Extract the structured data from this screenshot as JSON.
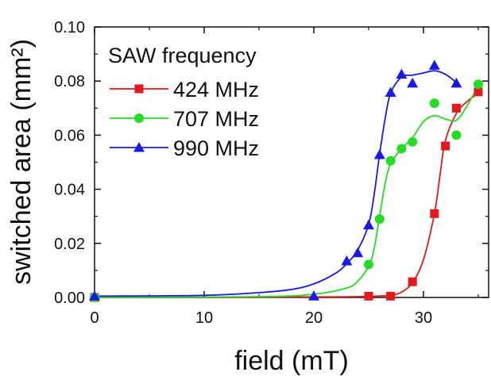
{
  "chart_data": {
    "type": "scatter",
    "xlabel": "field (mT)",
    "ylabel": "switched area (mm²)",
    "xlim": [
      0,
      36
    ],
    "ylim": [
      0,
      0.1
    ],
    "x_ticks": [
      "0",
      "10",
      "20",
      "30"
    ],
    "y_ticks": [
      "0.00",
      "0.02",
      "0.04",
      "0.06",
      "0.08",
      "0.10"
    ],
    "legend_title": "SAW frequency",
    "legend_position": "top-left",
    "series": [
      {
        "name": "424 MHz",
        "color": "#e31a1c",
        "marker": "square",
        "points": [
          [
            0,
            0.0
          ],
          [
            25,
            0.0005
          ],
          [
            27,
            0.0005
          ],
          [
            29,
            0.0058
          ],
          [
            31,
            0.031
          ],
          [
            32,
            0.056
          ],
          [
            33,
            0.07
          ],
          [
            35,
            0.076
          ]
        ],
        "fit": [
          [
            0,
            0.0
          ],
          [
            20,
            0.0002
          ],
          [
            25,
            0.0004
          ],
          [
            27,
            0.0008
          ],
          [
            28,
            0.002
          ],
          [
            29,
            0.0055
          ],
          [
            30,
            0.014
          ],
          [
            31,
            0.031
          ],
          [
            31.5,
            0.045
          ],
          [
            32,
            0.058
          ],
          [
            33,
            0.068
          ],
          [
            34,
            0.0725
          ],
          [
            35,
            0.0755
          ]
        ]
      },
      {
        "name": "707 MHz",
        "color": "#22dd22",
        "marker": "circle",
        "points": [
          [
            0,
            0.0
          ],
          [
            25,
            0.0122
          ],
          [
            26,
            0.029
          ],
          [
            27,
            0.0505
          ],
          [
            28,
            0.055
          ],
          [
            29,
            0.0575
          ],
          [
            31,
            0.0718
          ],
          [
            33,
            0.06
          ],
          [
            35,
            0.0788
          ]
        ],
        "fit": [
          [
            0,
            0.0
          ],
          [
            15,
            0.0003
          ],
          [
            20,
            0.0012
          ],
          [
            23,
            0.0035
          ],
          [
            24,
            0.006
          ],
          [
            25,
            0.0115
          ],
          [
            25.5,
            0.018
          ],
          [
            26,
            0.03
          ],
          [
            26.5,
            0.042
          ],
          [
            27,
            0.0495
          ],
          [
            28,
            0.055
          ],
          [
            29,
            0.059
          ],
          [
            30,
            0.065
          ],
          [
            31,
            0.0672
          ],
          [
            32,
            0.066
          ],
          [
            33,
            0.0655
          ],
          [
            34,
            0.071
          ],
          [
            35,
            0.0785
          ]
        ]
      },
      {
        "name": "990 MHz",
        "color": "#1a1ae8",
        "marker": "triangle",
        "points": [
          [
            0,
            0.0005
          ],
          [
            20,
            0.0005
          ],
          [
            23,
            0.0135
          ],
          [
            24,
            0.0165
          ],
          [
            25,
            0.0268
          ],
          [
            26,
            0.0528
          ],
          [
            27,
            0.0758
          ],
          [
            28,
            0.0825
          ],
          [
            29,
            0.0792
          ],
          [
            31,
            0.0858
          ],
          [
            33,
            0.0792
          ]
        ],
        "fit": [
          [
            0,
            0.0005
          ],
          [
            10,
            0.0008
          ],
          [
            15,
            0.0018
          ],
          [
            18,
            0.003
          ],
          [
            20,
            0.005
          ],
          [
            22,
            0.009
          ],
          [
            23,
            0.0125
          ],
          [
            24,
            0.0175
          ],
          [
            25,
            0.027
          ],
          [
            25.5,
            0.038
          ],
          [
            26,
            0.053
          ],
          [
            26.5,
            0.066
          ],
          [
            27,
            0.0755
          ],
          [
            28,
            0.0815
          ],
          [
            29,
            0.0822
          ],
          [
            30,
            0.083
          ],
          [
            31,
            0.0838
          ],
          [
            32,
            0.0825
          ],
          [
            33,
            0.0795
          ]
        ]
      }
    ]
  }
}
